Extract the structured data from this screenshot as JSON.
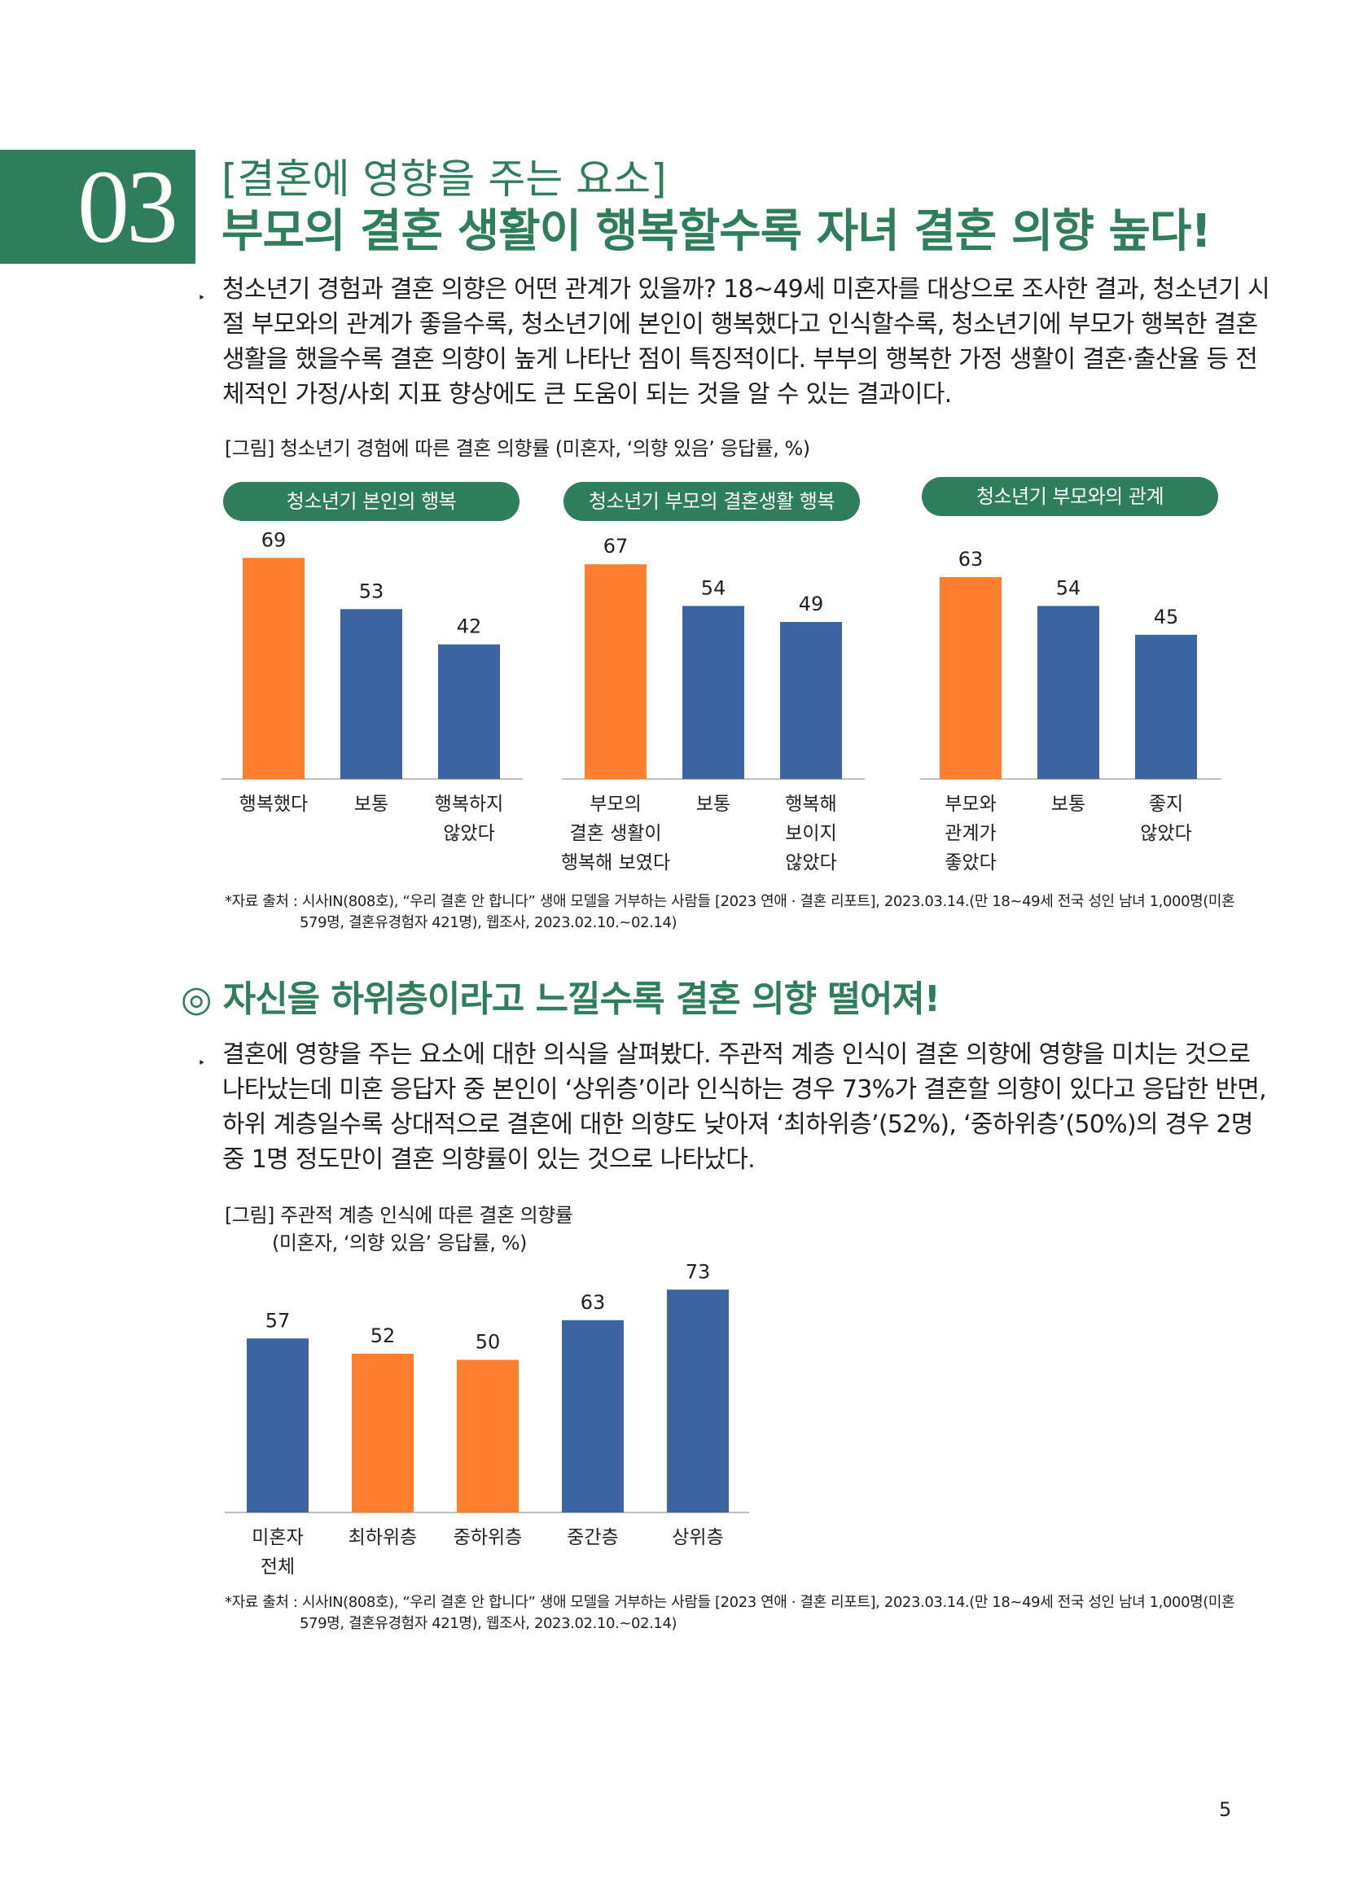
{
  "section": {
    "number": "03",
    "subheading": "[결혼에 영향을 주는 요소]",
    "heading": "부모의 결혼 생활이 행복할수록 자녀 결혼 의향 높다!"
  },
  "intro": {
    "bullet": "‣",
    "lines": [
      "청소년기 경험과 결혼 의향은 어떤 관계가 있을까? 18~49세 미혼자를 대상으로 조사한 결과, 청소년기 시",
      "절 부모와의 관계가 좋을수록, 청소년기에 본인이 행복했다고 인식할수록, 청소년기에 부모가 행복한 결혼",
      "생활을 했을수록 결혼 의향이 높게 나타난 점이 특징적이다. 부부의 행복한 가정 생활이 결혼·출산율 등 전",
      "체적인 가정/사회 지표 향상에도 큰 도움이 되는 것을 알 수 있는 결과이다."
    ]
  },
  "figure1": {
    "caption": "[그림] 청소년기 경험에 따른 결혼 의향률 (미혼자, ‘의향 있음’ 응답률, %)"
  },
  "section2": {
    "heading": "◎ 자신을 하위층이라고 느낄수록 결혼 의향 떨어져!",
    "bullet": "‣",
    "lines": [
      "결혼에 영향을 주는 요소에 대한 의식을 살펴봤다. 주관적 계층 인식이 결혼 의향에 영향을 미치는 것으로",
      "나타났는데 미혼 응답자 중 본인이 ‘상위층’이라 인식하는 경우 73%가 결혼할 의향이 있다고 응답한 반면,",
      "하위 계층일수록 상대적으로 결혼에 대한 의향도 낮아져 ‘최하위층’(52%), ‘중하위층’(50%)의 경우 2명",
      "중 1명 정도만이 결혼 의향률이 있는 것으로 나타났다."
    ]
  },
  "figure2": {
    "caption_line1": "[그림] 주관적 계층 인식에 따른 결혼 의향률",
    "caption_line2": "(미혼자, ‘의향 있음’ 응답률, %)"
  },
  "source_note": {
    "line1": "*자료 출처 : 시사IN(808호), “우리 결혼 안 합니다” 생애 모델을 거부하는 사람들 [2023 연애 · 결혼 리포트], 2023.03.14.(만 18~49세 전국 성인 남녀 1,000명(미혼",
    "line2": "579명, 결혼유경험자 421명), 웹조사, 2023.02.10.~02.14)"
  },
  "page_number": "5",
  "colors": {
    "green": "#2e7d5b",
    "orange": "#fe7f2d",
    "blue": "#3b64a0",
    "axis": "#bfbfbf"
  },
  "chart_data": [
    {
      "type": "bar",
      "title": "청소년기 본인의 행복",
      "categories": [
        [
          "행복했다"
        ],
        [
          "보통"
        ],
        [
          "행복하지",
          "않았다"
        ]
      ],
      "values": [
        69,
        53,
        42
      ],
      "colors": [
        "#fe7f2d",
        "#3b64a0",
        "#3b64a0"
      ],
      "ylim": [
        0,
        80
      ]
    },
    {
      "type": "bar",
      "title": "청소년기 부모의 결혼생활 행복",
      "categories": [
        [
          "부모의",
          "결혼 생활이",
          "행복해 보였다"
        ],
        [
          "보통"
        ],
        [
          "행복해",
          "보이지",
          "않았다"
        ]
      ],
      "values": [
        67,
        54,
        49
      ],
      "colors": [
        "#fe7f2d",
        "#3b64a0",
        "#3b64a0"
      ],
      "ylim": [
        0,
        80
      ]
    },
    {
      "type": "bar",
      "title": "청소년기 부모와의 관계",
      "categories": [
        [
          "부모와",
          "관계가",
          "좋았다"
        ],
        [
          "보통"
        ],
        [
          "좋지",
          "않았다"
        ]
      ],
      "values": [
        63,
        54,
        45
      ],
      "colors": [
        "#fe7f2d",
        "#3b64a0",
        "#3b64a0"
      ],
      "ylim": [
        0,
        80
      ]
    },
    {
      "type": "bar",
      "categories": [
        [
          "미혼자",
          "전체"
        ],
        [
          "최하위층"
        ],
        [
          "중하위층"
        ],
        [
          "중간층"
        ],
        [
          "상위층"
        ]
      ],
      "values": [
        57,
        52,
        50,
        63,
        73
      ],
      "colors": [
        "#3b64a0",
        "#fe7f2d",
        "#fe7f2d",
        "#3b64a0",
        "#3b64a0"
      ],
      "ylim": [
        0,
        80
      ]
    }
  ]
}
